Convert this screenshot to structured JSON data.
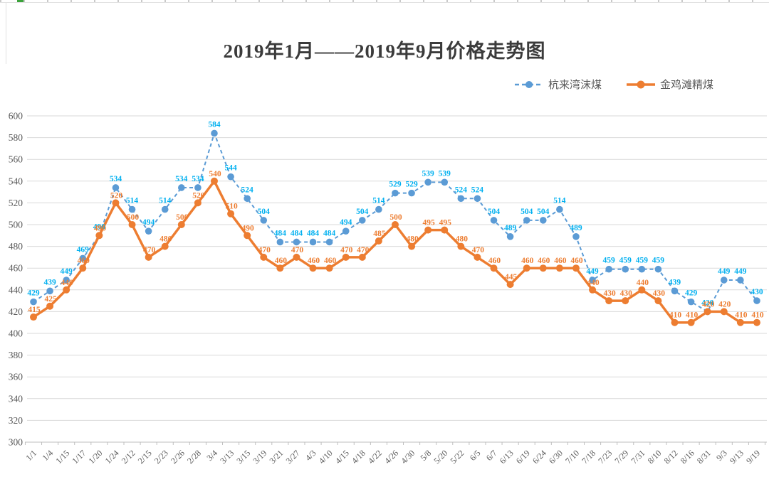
{
  "title": "2019年1月——2019年9月价格走势图",
  "colors": {
    "series1_line": "#5B9BD5",
    "series1_label": "#00B0F0",
    "series2_line": "#ED7D31",
    "series2_label": "#ED7D31",
    "gridline": "#D9D9D9",
    "axis_text": "#595959",
    "title_text": "#3B3B3B"
  },
  "chart_data": {
    "type": "line",
    "title": "2019年1月——2019年9月价格走势图",
    "categories": [
      "1/1",
      "1/4",
      "1/15",
      "1/17",
      "1/20",
      "1/24",
      "2/12",
      "2/15",
      "2/23",
      "2/26",
      "2/28",
      "3/4",
      "3/13",
      "3/15",
      "3/19",
      "3/21",
      "3/27",
      "4/3",
      "4/10",
      "4/15",
      "4/18",
      "4/22",
      "4/26",
      "4/30",
      "5/8",
      "5/20",
      "5/22",
      "6/5",
      "6/7",
      "6/13",
      "6/19",
      "6/24",
      "6/30",
      "7/10",
      "7/18",
      "7/23",
      "7/29",
      "7/31",
      "8/10",
      "8/12",
      "8/16",
      "8/31",
      "9/3",
      "9/13",
      "9/19"
    ],
    "series": [
      {
        "name": "杭来湾沫煤",
        "style": "dashed",
        "color": "#5B9BD5",
        "label_color": "#00B0F0",
        "values": [
          429,
          439,
          449,
          469,
          490,
          534,
          514,
          494,
          514,
          534,
          534,
          584,
          544,
          524,
          504,
          484,
          484,
          484,
          484,
          494,
          504,
          514,
          529,
          529,
          539,
          539,
          524,
          524,
          504,
          489,
          504,
          504,
          514,
          489,
          449,
          459,
          459,
          459,
          459,
          439,
          429,
          420,
          449,
          449,
          430
        ]
      },
      {
        "name": "金鸡滩精煤",
        "style": "solid",
        "color": "#ED7D31",
        "label_color": "#ED7D31",
        "values": [
          415,
          425,
          440,
          460,
          490,
          520,
          500,
          470,
          480,
          500,
          520,
          540,
          510,
          490,
          470,
          460,
          470,
          460,
          460,
          470,
          470,
          485,
          500,
          480,
          495,
          495,
          480,
          470,
          460,
          445,
          460,
          460,
          460,
          460,
          440,
          430,
          430,
          440,
          430,
          410,
          410,
          420,
          420,
          410,
          410
        ]
      }
    ],
    "ylim": [
      300,
      600
    ],
    "ytick_step": 20,
    "yticks": [
      300,
      320,
      340,
      360,
      380,
      400,
      420,
      440,
      460,
      480,
      500,
      520,
      540,
      560,
      580,
      600
    ],
    "grid": true,
    "legend_position": "top-right",
    "xlabel": "",
    "ylabel": ""
  }
}
